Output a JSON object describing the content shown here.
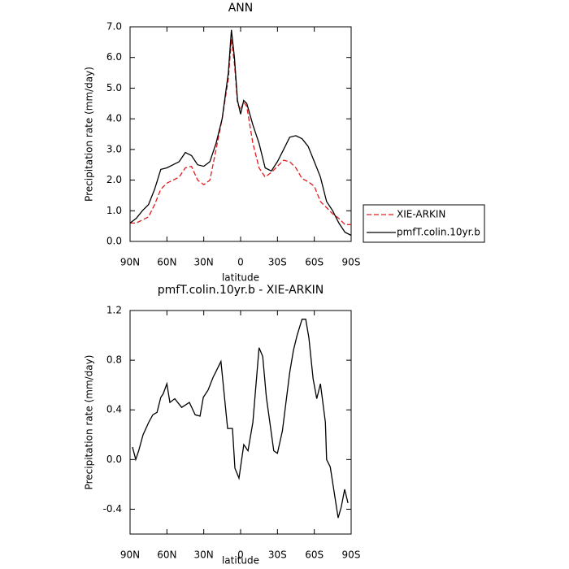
{
  "chart_data": [
    {
      "type": "line",
      "title": "ANN",
      "x_label": "latitude",
      "y_label": "Precipitation rate (mm/day)",
      "x": [
        90,
        85,
        80,
        75,
        70,
        65,
        60,
        55,
        50,
        45,
        40,
        35,
        30,
        25,
        20,
        15,
        10,
        7.5,
        5,
        2.5,
        0,
        -2.5,
        -5,
        -10,
        -15,
        -20,
        -25,
        -30,
        -35,
        -40,
        -45,
        -50,
        -55,
        -60,
        -65,
        -70,
        -75,
        -80,
        -85,
        -90
      ],
      "series": [
        {
          "name": "XIE-ARKIN",
          "color": "#e41a1c",
          "style": "dashed",
          "values": [
            0.6,
            0.6,
            0.7,
            0.8,
            1.2,
            1.7,
            1.9,
            2.0,
            2.1,
            2.4,
            2.45,
            2.0,
            1.85,
            2.0,
            3.0,
            4.0,
            5.3,
            6.6,
            5.8,
            4.5,
            4.3,
            4.55,
            4.4,
            3.2,
            2.4,
            2.1,
            2.25,
            2.45,
            2.65,
            2.6,
            2.4,
            2.05,
            1.95,
            1.8,
            1.3,
            1.1,
            0.9,
            0.75,
            0.55,
            0.55
          ]
        },
        {
          "name": "pmfT.colin.10yr.b",
          "color": "#000000",
          "style": "solid",
          "values": [
            0.6,
            0.75,
            1.0,
            1.2,
            1.7,
            2.35,
            2.4,
            2.5,
            2.6,
            2.9,
            2.8,
            2.5,
            2.45,
            2.6,
            3.2,
            4.0,
            5.5,
            6.9,
            6.0,
            4.6,
            4.15,
            4.6,
            4.5,
            3.8,
            3.2,
            2.4,
            2.3,
            2.6,
            3.0,
            3.4,
            3.45,
            3.35,
            3.1,
            2.6,
            2.1,
            1.3,
            1.0,
            0.6,
            0.3,
            0.2
          ]
        }
      ],
      "xlim": [
        90,
        -90
      ],
      "xticks": [
        {
          "value": 90,
          "label": "90N"
        },
        {
          "value": 60,
          "label": "60N"
        },
        {
          "value": 30,
          "label": "30N"
        },
        0,
        {
          "value": -30,
          "label": "30S"
        },
        {
          "value": -60,
          "label": "60S"
        },
        {
          "value": -90,
          "label": "90S"
        }
      ],
      "ylim": [
        0,
        7
      ],
      "yticks": [
        {
          "value": 0,
          "label": "0.0"
        },
        {
          "value": 1,
          "label": "1.0"
        },
        {
          "value": 2,
          "label": "2.0"
        },
        {
          "value": 3,
          "label": "3.0"
        },
        {
          "value": 4,
          "label": "4.0"
        },
        {
          "value": 5,
          "label": "5.0"
        },
        {
          "value": 6,
          "label": "6.0"
        },
        {
          "value": 7,
          "label": "7.0"
        }
      ],
      "legend": "outside-right-bottom"
    },
    {
      "type": "line",
      "title": "pmfT.colin.10yr.b - XIE-ARKIN",
      "x_label": "latitude",
      "y_label": "Precipitation rate (mm/day)",
      "x": [
        88,
        85.4,
        83,
        79.4,
        74.8,
        71.5,
        68,
        65,
        63,
        60,
        57.6,
        53.6,
        48,
        41.7,
        37,
        33,
        30.4,
        26.5,
        22.5,
        20,
        16,
        10.6,
        6.6,
        4.6,
        1.3,
        -2.6,
        -6,
        -10,
        -15,
        -18,
        -21,
        -24.5,
        -27,
        -30,
        -34,
        -40,
        -43,
        -46,
        -50,
        -53,
        -55.6,
        -59,
        -62,
        -65,
        -69,
        -70,
        -73,
        -79.4,
        -82,
        -84.7,
        -87.4
      ],
      "series": [
        {
          "name": "pmfT.colin.10yr.b - XIE-ARKIN",
          "color": "#000000",
          "style": "solid",
          "values": [
            0.1,
            0.0,
            0.07,
            0.2,
            0.3,
            0.36,
            0.38,
            0.5,
            0.53,
            0.61,
            0.46,
            0.49,
            0.42,
            0.46,
            0.36,
            0.35,
            0.5,
            0.56,
            0.66,
            0.71,
            0.79,
            0.25,
            0.25,
            -0.07,
            -0.15,
            0.12,
            0.07,
            0.3,
            0.9,
            0.83,
            0.5,
            0.25,
            0.07,
            0.05,
            0.23,
            0.7,
            0.88,
            1.0,
            1.13,
            1.13,
            0.98,
            0.65,
            0.49,
            0.61,
            0.3,
            0.0,
            -0.06,
            -0.47,
            -0.38,
            -0.24,
            -0.35
          ]
        }
      ],
      "xlim": [
        90,
        -90
      ],
      "xticks": [
        {
          "value": 90,
          "label": "90N"
        },
        {
          "value": 60,
          "label": "60N"
        },
        {
          "value": 30,
          "label": "30N"
        },
        0,
        {
          "value": -30,
          "label": "30S"
        },
        {
          "value": -60,
          "label": "60S"
        },
        {
          "value": -90,
          "label": "90S"
        }
      ],
      "ylim": [
        -0.6,
        1.2
      ],
      "yticks": [
        {
          "value": -0.4,
          "label": "-0.4"
        },
        {
          "value": 0,
          "label": "0.0"
        },
        {
          "value": 0.4,
          "label": "0.4"
        },
        {
          "value": 0.8,
          "label": "0.8"
        },
        {
          "value": 1.2,
          "label": "1.2"
        }
      ]
    }
  ]
}
